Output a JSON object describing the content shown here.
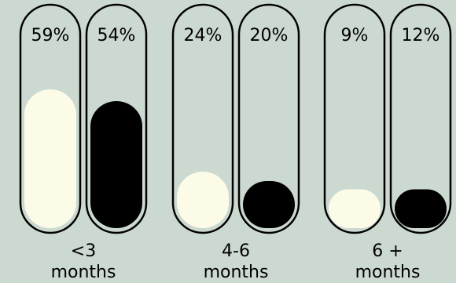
{
  "colors": {
    "background": "#ccd9d0",
    "outline": "#000000",
    "series_light": "#fcfbe8",
    "series_dark": "#000000"
  },
  "chart_data": {
    "type": "bar",
    "categories": [
      {
        "line1": "<3",
        "line2": "months"
      },
      {
        "line1": "4-6",
        "line2": "months"
      },
      {
        "line1": "6 +",
        "line2": "months"
      }
    ],
    "series": [
      {
        "color": "#fcfbe8",
        "values": [
          59,
          24,
          9
        ],
        "labels": [
          "59%",
          "24%",
          "9%"
        ]
      },
      {
        "color": "#000000",
        "values": [
          54,
          20,
          12
        ],
        "labels": [
          "54%",
          "20%",
          "12%"
        ]
      }
    ],
    "ylim": [
      0,
      100
    ],
    "grid": false,
    "legend": "none"
  }
}
